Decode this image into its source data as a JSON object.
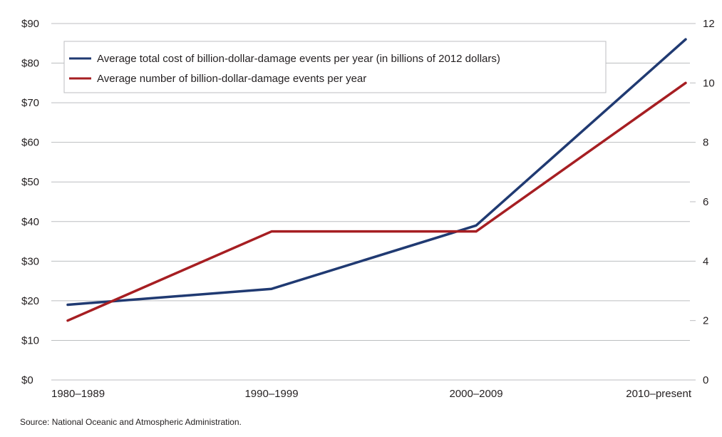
{
  "chart_data": {
    "type": "line",
    "categories": [
      "1980–1989",
      "1990–1999",
      "2000–2009",
      "2010–present"
    ],
    "series": [
      {
        "name": "Average total cost of billion-dollar-damage events per year (in billions of 2012  dollars)",
        "axis": "left",
        "values": [
          19,
          23,
          39,
          86
        ]
      },
      {
        "name": "Average number of billion-dollar-damage events per year",
        "axis": "right",
        "values": [
          2,
          5,
          5,
          10
        ]
      }
    ],
    "y_left": {
      "ylim": [
        0,
        90
      ],
      "ticks": [
        0,
        10,
        20,
        30,
        40,
        50,
        60,
        70,
        80,
        90
      ],
      "tick_labels": [
        "$0",
        "$10",
        "$20",
        "$30",
        "$40",
        "$50",
        "$60",
        "$70",
        "$80",
        "$90"
      ]
    },
    "y_right": {
      "ylim": [
        0,
        12
      ],
      "ticks": [
        0,
        2,
        4,
        6,
        8,
        10,
        12
      ],
      "tick_labels": [
        "0",
        "2",
        "4",
        "6",
        "8",
        "10",
        "12"
      ]
    },
    "grid": true,
    "legend": "top-left",
    "colors": {
      "cost": "#203a72",
      "count": "#a61e22",
      "grid": "#bcbec0",
      "background": "#ffffff"
    },
    "source": "Source: National Oceanic and Atmospheric Administration."
  }
}
